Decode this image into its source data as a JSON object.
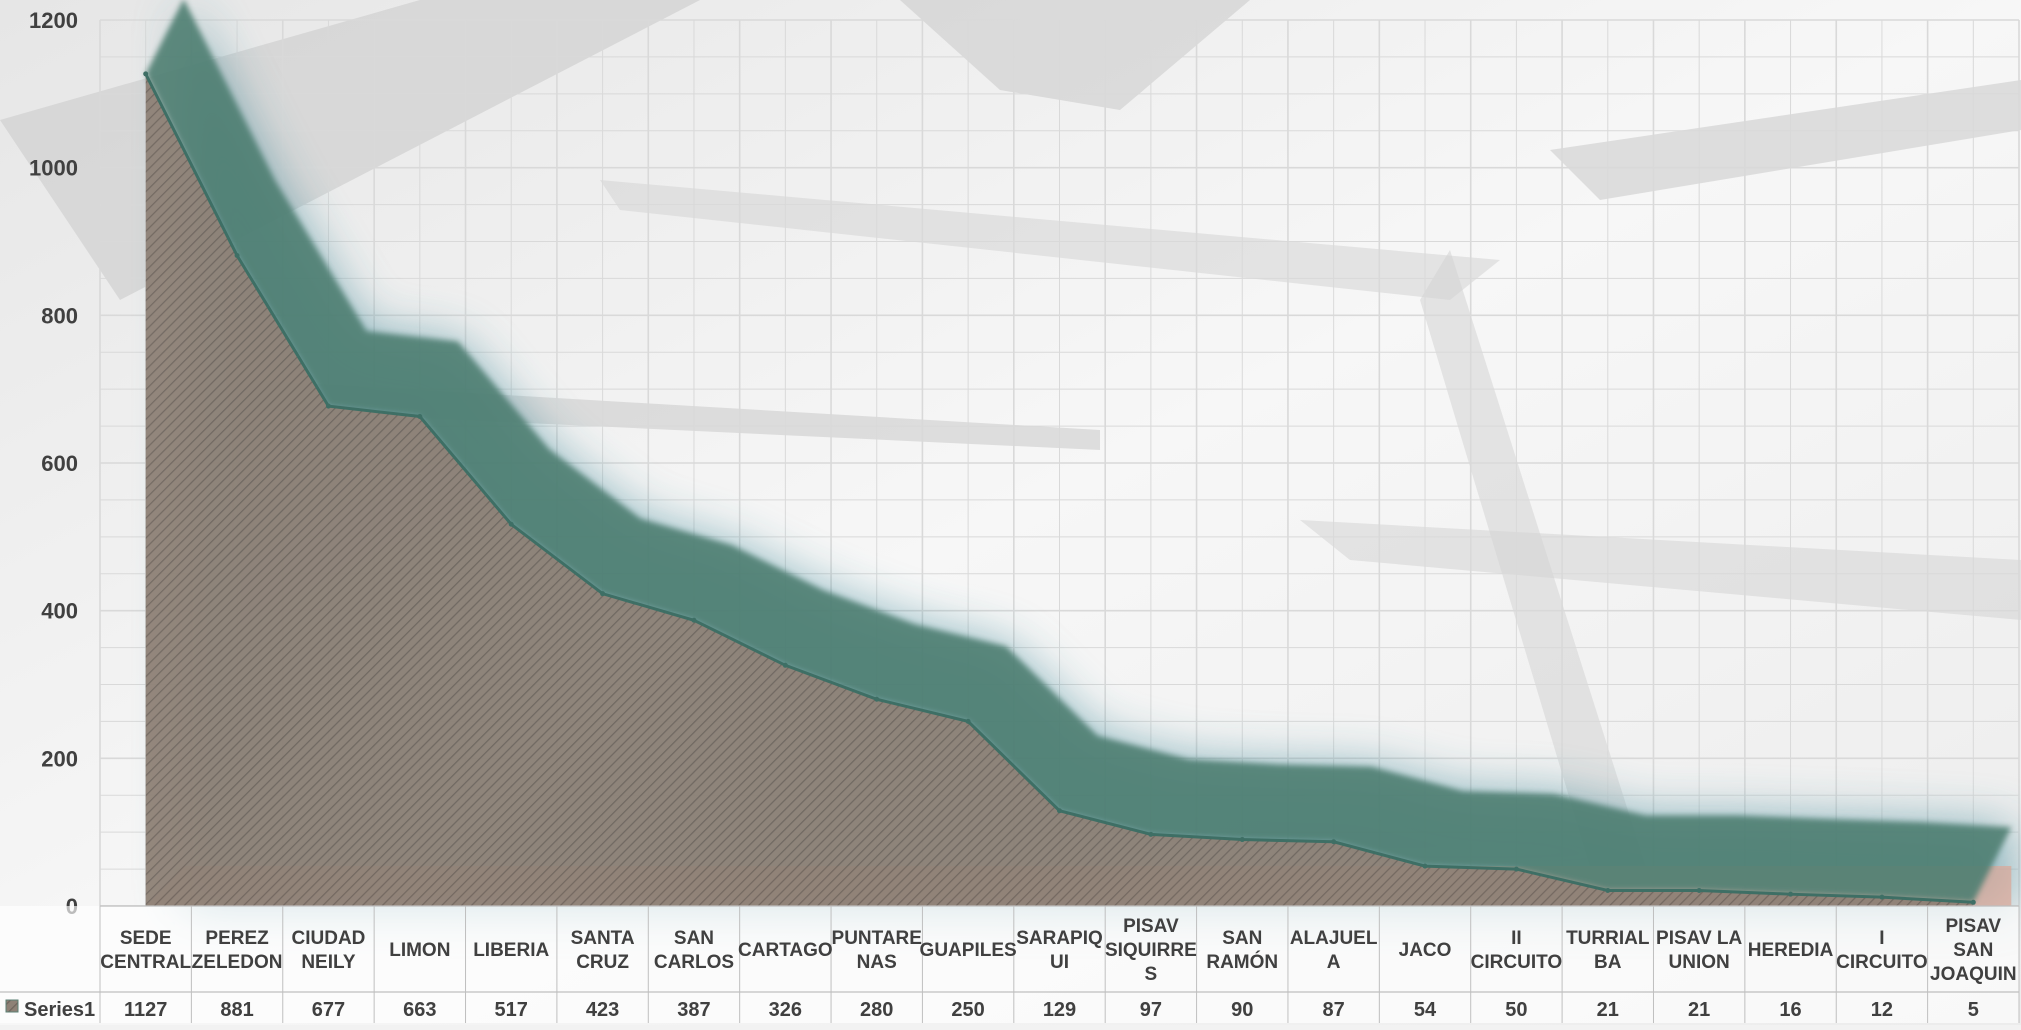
{
  "chart_data": {
    "type": "area",
    "categories": [
      [
        "SEDE",
        "CENTRAL"
      ],
      [
        "PEREZ",
        "ZELEDON"
      ],
      [
        "CIUDAD",
        "NEILY"
      ],
      [
        "LIMON"
      ],
      [
        "LIBERIA"
      ],
      [
        "SANTA",
        "CRUZ"
      ],
      [
        "SAN",
        "CARLOS"
      ],
      [
        "CARTAGO"
      ],
      [
        "PUNTARE",
        "NAS"
      ],
      [
        "GUAPILES"
      ],
      [
        "SARAPIQ",
        "UI"
      ],
      [
        "PISAV",
        "SIQUIRRE",
        "S"
      ],
      [
        "SAN",
        "RAMÓN"
      ],
      [
        "ALAJUEL",
        "A"
      ],
      [
        "JACO"
      ],
      [
        "II",
        "CIRCUITO"
      ],
      [
        "TURRIAL",
        "BA"
      ],
      [
        "PISAV LA",
        "UNION"
      ],
      [
        "HEREDIA"
      ],
      [
        "I",
        "CIRCUITO"
      ],
      [
        "PISAV",
        "SAN",
        "JOAQUIN"
      ]
    ],
    "series": [
      {
        "name": "Series1",
        "values": [
          1127,
          881,
          677,
          663,
          517,
          423,
          387,
          326,
          280,
          250,
          129,
          97,
          90,
          87,
          54,
          50,
          21,
          21,
          16,
          12,
          5
        ]
      }
    ],
    "y_ticks": [
      "0",
      "200",
      "400",
      "600",
      "800",
      "1000",
      "1200"
    ],
    "ylim": [
      0,
      1200
    ],
    "grid": true,
    "data_table": true,
    "legend": "in data table",
    "colors": {
      "area_fill": "#8a7d72",
      "area_edge": "#4f7f72",
      "glow": "#2e7f90",
      "grid": "#d9d9d9",
      "text": "#404040",
      "base_band": "#d9a89a"
    }
  }
}
